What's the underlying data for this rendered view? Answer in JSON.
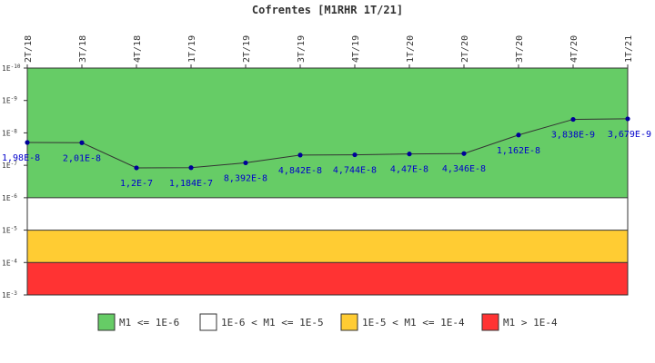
{
  "chart_data": {
    "type": "line",
    "title": "Cofrentes [M1RHR 1T/21]",
    "categories": [
      "2T/18",
      "3T/18",
      "4T/18",
      "1T/19",
      "2T/19",
      "3T/19",
      "4T/19",
      "1T/20",
      "2T/20",
      "3T/20",
      "4T/20",
      "1T/21"
    ],
    "values": [
      1.98e-08,
      2.01e-08,
      1.2e-07,
      1.184e-07,
      8.392e-08,
      4.842e-08,
      4.744e-08,
      4.47e-08,
      4.346e-08,
      1.162e-08,
      3.838e-09,
      3.679e-09
    ],
    "data_labels": [
      "1,98E-8",
      "2,01E-8",
      "1,2E-7",
      "1,184E-7",
      "8,392E-8",
      "4,842E-8",
      "4,744E-8",
      "4,47E-8",
      "4,346E-8",
      "1,162E-8",
      "3,838E-9",
      "3,679E-9"
    ],
    "y_scale": "log",
    "y_axis_reversed": true,
    "ylim": [
      1e-10,
      0.001
    ],
    "y_ticks": [
      {
        "base": "1E",
        "exp": "-10"
      },
      {
        "base": "1E",
        "exp": "-9"
      },
      {
        "base": "1E",
        "exp": "-8"
      },
      {
        "base": "1E",
        "exp": "-7"
      },
      {
        "base": "1E",
        "exp": "-6"
      },
      {
        "base": "1E",
        "exp": "-5"
      },
      {
        "base": "1E",
        "exp": "-4"
      },
      {
        "base": "1E",
        "exp": "-3"
      }
    ],
    "bands": [
      {
        "from": 1e-10,
        "to": 1e-06,
        "color": "#66cc66"
      },
      {
        "from": 1e-06,
        "to": 1e-05,
        "color": "#ffffff"
      },
      {
        "from": 1e-05,
        "to": 0.0001,
        "color": "#ffcc33"
      },
      {
        "from": 0.0001,
        "to": 0.001,
        "color": "#ff3333"
      }
    ],
    "line_color": "#333333",
    "marker_color": "#000099",
    "label_color": "#0000cc",
    "legend": [
      {
        "label": "M1 <= 1E-6",
        "color": "#66cc66"
      },
      {
        "label": "1E-6 < M1 <= 1E-5",
        "color": "#ffffff"
      },
      {
        "label": "1E-5 < M1 <= 1E-4",
        "color": "#ffcc33"
      },
      {
        "label": "M1 > 1E-4",
        "color": "#ff3333"
      }
    ],
    "legend_position": "bottom"
  }
}
